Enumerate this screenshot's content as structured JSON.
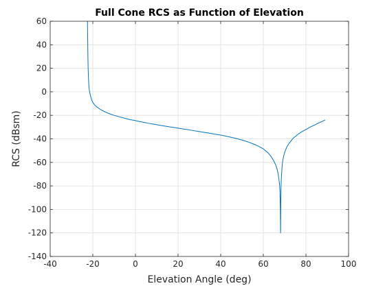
{
  "chart_data": {
    "type": "line",
    "title": "Full Cone RCS as Function of Elevation",
    "xlabel": "Elevation Angle (deg)",
    "ylabel": "RCS (dBsm)",
    "xlim": [
      -40,
      100
    ],
    "ylim": [
      -140,
      60
    ],
    "xticks": [
      "-40",
      "-20",
      "0",
      "20",
      "40",
      "60",
      "80",
      "100"
    ],
    "yticks": [
      "60",
      "40",
      "20",
      "0",
      "-20",
      "-40",
      "-60",
      "-80",
      "-100",
      "-120",
      "-140"
    ],
    "grid": true,
    "line_color": "#0072BD",
    "series": [
      {
        "x": [
          -22.5,
          -22.4,
          -22.3,
          -22.2,
          -22.0,
          -21.8,
          -21.5,
          -21.0,
          -20.5,
          -20.0,
          -19.0,
          -18.0,
          -16.0,
          -14.0,
          -12.0,
          -10.0,
          -8.0,
          -6.0,
          -4.0,
          -2.0,
          0.0,
          2.0,
          4.0,
          6.0,
          8.0,
          10.0,
          12.0,
          14.0,
          16.0,
          18.0,
          20.0,
          22.0,
          24.0,
          26.0,
          28.0,
          30.0,
          32.0,
          34.0,
          36.0,
          38.0,
          40.0,
          42.0,
          44.0,
          46.0,
          48.0,
          50.0,
          52.0,
          54.0,
          56.0,
          58.0,
          60.0,
          62.0,
          63.0,
          64.0,
          65.0,
          66.0,
          66.5,
          67.0,
          67.3,
          67.6,
          67.8,
          68.0,
          68.1,
          68.2,
          68.3,
          68.5,
          68.8,
          69.0,
          69.5,
          70.0,
          71.0,
          72.0,
          74.0,
          76.0,
          78.0,
          80.0,
          82.0,
          84.0,
          86.0,
          88.0,
          89.0
        ],
        "y": [
          60,
          45,
          30,
          20,
          10,
          4,
          0,
          -4,
          -7,
          -9,
          -11.5,
          -13,
          -15.5,
          -17.3,
          -18.8,
          -20,
          -21,
          -22,
          -23,
          -23.8,
          -24.5,
          -25.3,
          -26,
          -26.7,
          -27.3,
          -28,
          -28.6,
          -29.2,
          -29.8,
          -30.3,
          -30.9,
          -31.5,
          -32,
          -32.6,
          -33.2,
          -33.8,
          -34.4,
          -35,
          -35.6,
          -36.2,
          -36.8,
          -37.5,
          -38.3,
          -39.1,
          -40,
          -41,
          -42.1,
          -43.4,
          -44.8,
          -46.5,
          -48.5,
          -51.5,
          -53.5,
          -56,
          -59,
          -63,
          -66,
          -70,
          -74,
          -79,
          -84,
          -100,
          -120,
          -95,
          -82,
          -72,
          -64,
          -60,
          -55,
          -51.5,
          -47,
          -44,
          -39.5,
          -36.5,
          -34,
          -32,
          -30,
          -28.3,
          -26.5,
          -24.8,
          -24
        ]
      }
    ]
  }
}
